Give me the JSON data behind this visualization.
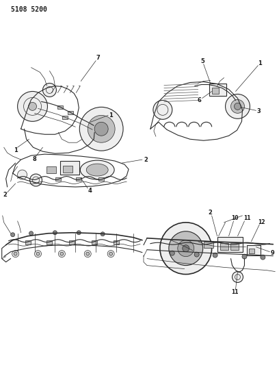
{
  "title": "5108 5200",
  "background_color": "#ffffff",
  "text_color": "#1a1a1a",
  "line_color": "#2a2a2a",
  "figsize": [
    4.08,
    5.33
  ],
  "dpi": 100,
  "gray_fill": "#d8d8d8",
  "light_gray": "#eeeeee",
  "mid_gray": "#c0c0c0"
}
